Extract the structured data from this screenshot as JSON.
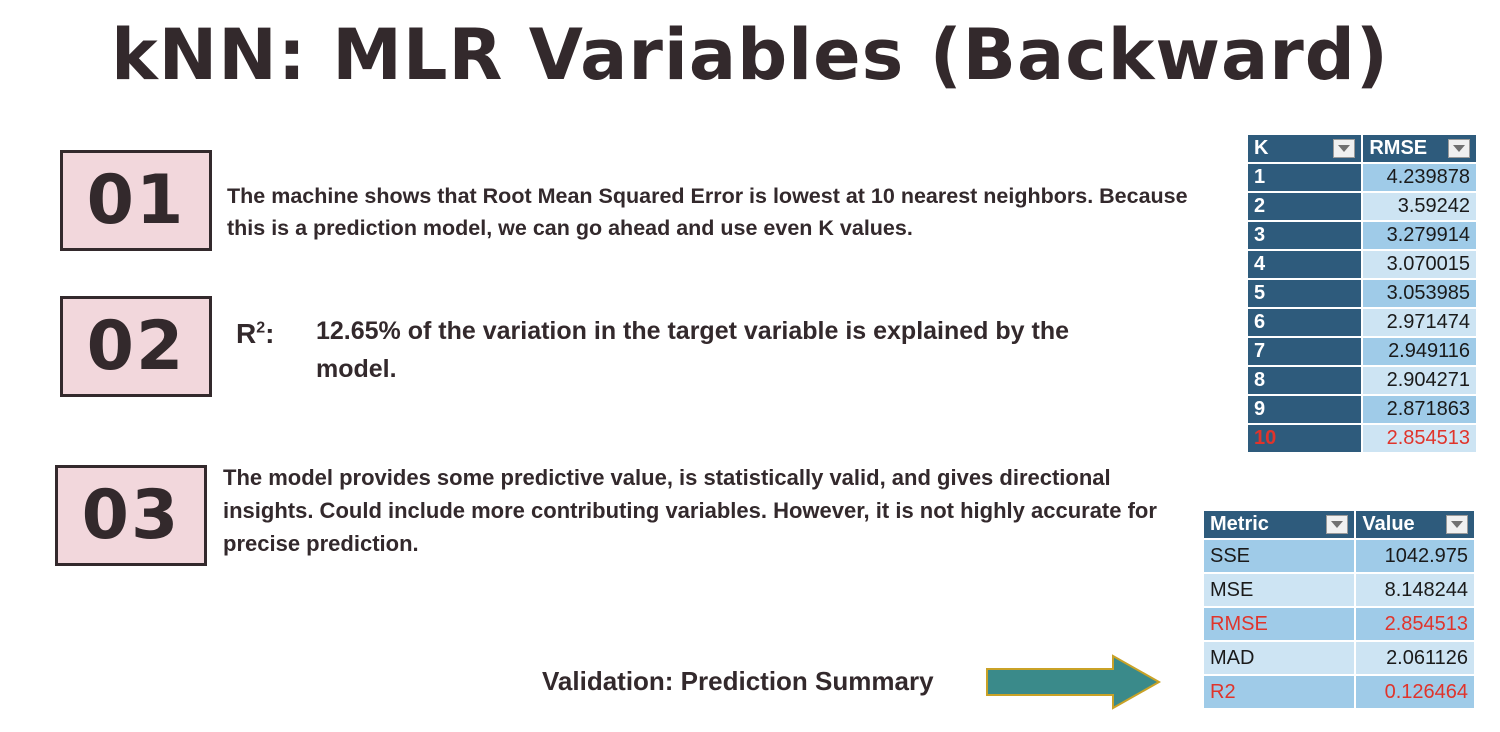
{
  "title": "kNN: MLR Variables (Backward)",
  "points": [
    {
      "number": "01",
      "text": "The machine shows that Root Mean Squared Error is lowest at 10 nearest neighbors. Because this is a prediction model, we can go ahead and use even K values."
    },
    {
      "number": "02",
      "label": "R",
      "label_sup": "2",
      "label_suffix": ":",
      "text": "12.65% of the variation in the target variable is explained by the model."
    },
    {
      "number": "03",
      "text": "The model provides some predictive value, is statistically valid, and gives directional insights. Could include more contributing variables. However, it is not highly accurate for precise prediction."
    }
  ],
  "k_table": {
    "headers": [
      "K",
      "RMSE"
    ],
    "rows": [
      {
        "k": "1",
        "rmse": "4.239878"
      },
      {
        "k": "2",
        "rmse": "3.59242"
      },
      {
        "k": "3",
        "rmse": "3.279914"
      },
      {
        "k": "4",
        "rmse": "3.070015"
      },
      {
        "k": "5",
        "rmse": "3.053985"
      },
      {
        "k": "6",
        "rmse": "2.971474"
      },
      {
        "k": "7",
        "rmse": "2.949116"
      },
      {
        "k": "8",
        "rmse": "2.904271"
      },
      {
        "k": "9",
        "rmse": "2.871863"
      },
      {
        "k": "10",
        "rmse": "2.854513",
        "highlight": true
      }
    ]
  },
  "metric_table": {
    "headers": [
      "Metric",
      "Value"
    ],
    "rows": [
      {
        "metric": "SSE",
        "value": "1042.975"
      },
      {
        "metric": "MSE",
        "value": "8.148244"
      },
      {
        "metric": "RMSE",
        "value": "2.854513",
        "highlight": true
      },
      {
        "metric": "MAD",
        "value": "2.061126"
      },
      {
        "metric": "R2",
        "value": "0.126464",
        "highlight": true
      }
    ]
  },
  "footer_label": "Validation:  Prediction Summary",
  "colors": {
    "text": "#33292c",
    "box_fill": "#f2d7dc",
    "table_header": "#2e5b7c",
    "row_dark": "#9fcbe8",
    "row_light": "#cde4f3",
    "highlight": "#e0342b",
    "arrow_fill": "#3a8a8a",
    "arrow_stroke": "#c9a227"
  }
}
